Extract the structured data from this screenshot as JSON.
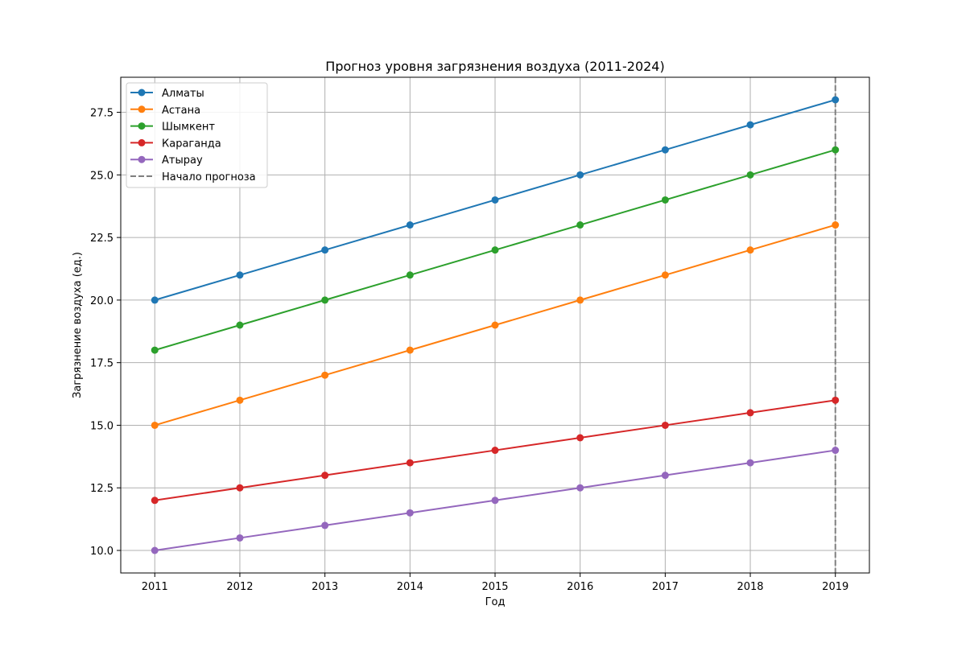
{
  "chart_data": {
    "type": "line",
    "title": "Прогноз уровня загрязнения воздуха (2011-2024)",
    "xlabel": "Год",
    "ylabel": "Загрязнение воздуха (ед.)",
    "x": [
      2011,
      2012,
      2013,
      2014,
      2015,
      2016,
      2017,
      2018,
      2019
    ],
    "x_ticks": [
      "2011",
      "2012",
      "2013",
      "2014",
      "2015",
      "2016",
      "2017",
      "2018",
      "2019"
    ],
    "y_ticks": [
      "10.0",
      "12.5",
      "15.0",
      "17.5",
      "20.0",
      "22.5",
      "25.0",
      "27.5"
    ],
    "xlim": [
      2010.6,
      2019.4
    ],
    "ylim": [
      9.1,
      28.9
    ],
    "grid": true,
    "legend_position": "top-left",
    "series": [
      {
        "name": "Алматы",
        "color": "#1f77b4",
        "values": [
          20,
          21,
          22,
          23,
          24,
          25,
          26,
          27,
          28
        ]
      },
      {
        "name": "Астана",
        "color": "#ff7f0e",
        "values": [
          15,
          16,
          17,
          18,
          19,
          20,
          21,
          22,
          23
        ]
      },
      {
        "name": "Шымкент",
        "color": "#2ca02c",
        "values": [
          18,
          19,
          20,
          21,
          22,
          23,
          24,
          25,
          26
        ]
      },
      {
        "name": "Караганда",
        "color": "#d62728",
        "values": [
          12,
          12.5,
          13,
          13.5,
          14,
          14.5,
          15,
          15.5,
          16
        ]
      },
      {
        "name": "Атырау",
        "color": "#9467bd",
        "values": [
          10,
          10.5,
          11,
          11.5,
          12,
          12.5,
          13,
          13.5,
          14
        ]
      }
    ],
    "vline": {
      "name": "Начало прогноза",
      "x": 2019,
      "color": "#808080",
      "style": "dashed"
    }
  }
}
